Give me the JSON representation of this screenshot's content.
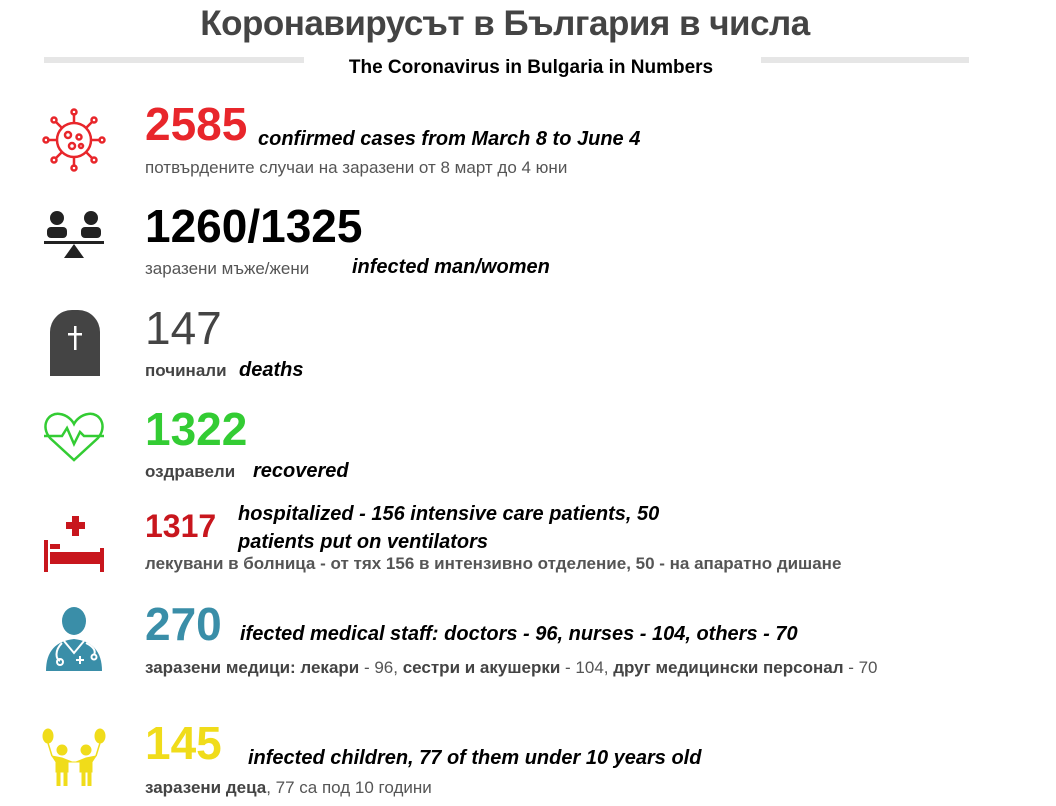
{
  "header": {
    "title": "Коронавирусът в България в числа",
    "subtitle": "The Coronavirus in Bulgaria in Numbers"
  },
  "colors": {
    "confirmed": "#e8262b",
    "gender": "#000000",
    "deaths": "#444444",
    "recovered": "#33cc33",
    "hospitalized": "#c8161d",
    "medical": "#3a8ea8",
    "children": "#f0dc1a"
  },
  "stats": {
    "confirmed": {
      "icon": "virus-icon",
      "value": "2585",
      "en": "confirmed cases from March 8 to June 4",
      "bg": "потвърдените случаи на заразени от 8 март до 4 юни"
    },
    "gender": {
      "icon": "gender-balance-icon",
      "value": "1260/1325",
      "bg": "заразени мъже/жени",
      "en": "infected man/women"
    },
    "deaths": {
      "icon": "tombstone-icon",
      "value": "147",
      "bg": "починали",
      "en": "deaths"
    },
    "recovered": {
      "icon": "heartbeat-icon",
      "value": "1322",
      "bg": "оздравели",
      "en": "recovered"
    },
    "hospitalized": {
      "icon": "hospital-bed-icon",
      "value": "1317",
      "en_line1": "hospitalized - 156 intensive care patients, 50",
      "en_line2": "patients put on ventilators",
      "bg": "лекувани в болница - от тях 156 в интензивно отделение, 50 - на апаратно дишане"
    },
    "medical": {
      "icon": "doctor-icon",
      "value": "270",
      "en": "ifected medical staff: doctors - 96, nurses - 104, others - 70",
      "bg_a": "заразени медици:  лекари",
      "bg_b": " - 96, ",
      "bg_c": "сестри и акушерки",
      "bg_d": " - 104, ",
      "bg_e": "друг медицински персонал",
      "bg_f": " - 70"
    },
    "children": {
      "icon": "children-balloons-icon",
      "value": "145",
      "en": "infected children, 77 of them under 10 years old",
      "bg_a": "заразени деца",
      "bg_b": ", 77 са  под 10 години"
    }
  }
}
